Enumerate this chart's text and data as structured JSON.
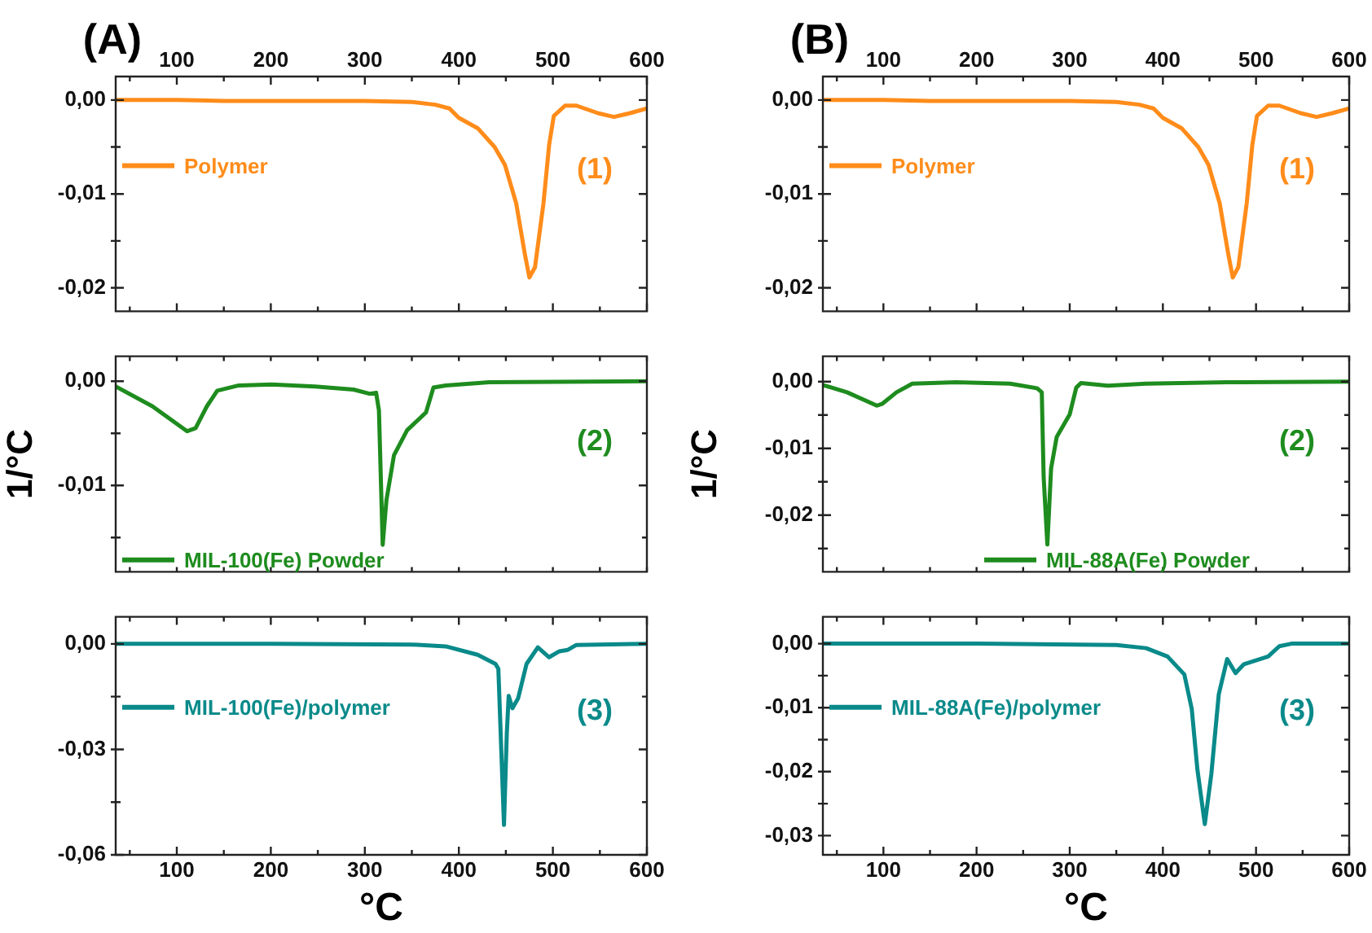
{
  "chart_data": [
    {
      "type": "line",
      "title": "(A)",
      "xlim": [
        35,
        600
      ],
      "xticks": [
        {
          "value": 50,
          "label": null
        },
        100,
        {
          "value": 150,
          "label": null
        },
        200,
        {
          "value": 250,
          "label": null
        },
        300,
        {
          "value": 350,
          "label": null
        },
        400,
        {
          "value": 450,
          "label": null
        },
        500,
        {
          "value": 550,
          "label": null
        },
        600
      ],
      "ylim": [
        -0.0225,
        0.0025
      ],
      "yticks": [
        {
          "value": 0,
          "label": "0,00"
        },
        {
          "value": -0.005,
          "label": null
        },
        {
          "value": -0.01,
          "label": "-0,01"
        },
        {
          "value": -0.015,
          "label": null
        },
        {
          "value": -0.02,
          "label": "-0,02"
        }
      ],
      "legend": "left",
      "annotations": [
        "(1)"
      ],
      "series": [
        {
          "name": "Polymer",
          "color": "#ff8c1a",
          "x": [
            35,
            100,
            150,
            200,
            250,
            300,
            350,
            375,
            390,
            400,
            420,
            438,
            449,
            461,
            470,
            475,
            481,
            490,
            496,
            501,
            513,
            525,
            548,
            565,
            582,
            600
          ],
          "values": [
            0,
            0,
            -0.0001,
            -0.0001,
            -0.0001,
            -0.0001,
            -0.0002,
            -0.0005,
            -0.0009,
            -0.0019,
            -0.003,
            -0.005,
            -0.0069,
            -0.011,
            -0.0163,
            -0.0189,
            -0.0178,
            -0.011,
            -0.0048,
            -0.0017,
            -0.0006,
            -0.0006,
            -0.0014,
            -0.0018,
            -0.0014,
            -0.0009
          ]
        }
      ]
    },
    {
      "type": "line",
      "ylabel": "1/°C",
      "xlim": [
        35,
        600
      ],
      "xticks": [
        {
          "value": 50,
          "label": null
        },
        {
          "value": 100,
          "label": null
        },
        {
          "value": 150,
          "label": null
        },
        {
          "value": 200,
          "label": null
        },
        {
          "value": 250,
          "label": null
        },
        {
          "value": 300,
          "label": null
        },
        {
          "value": 350,
          "label": null
        },
        {
          "value": 400,
          "label": null
        },
        {
          "value": 450,
          "label": null
        },
        {
          "value": 500,
          "label": null
        },
        {
          "value": 550,
          "label": null
        },
        {
          "value": 600,
          "label": null
        }
      ],
      "ylim": [
        -0.0183,
        0.0024
      ],
      "yticks": [
        {
          "value": 0,
          "label": "0,00"
        },
        {
          "value": -0.005,
          "label": null
        },
        {
          "value": -0.01,
          "label": "-0,01"
        },
        {
          "value": -0.015,
          "label": null
        }
      ],
      "tick_labels": "y",
      "legend": "bottom left",
      "annotations": [
        "(2)"
      ],
      "series": [
        {
          "name": "MIL-100(Fe) Powder",
          "color": "#1e8c1e",
          "x": [
            35,
            74,
            111,
            120,
            132,
            143,
            166,
            201,
            247,
            288,
            305,
            312,
            315,
            319,
            323,
            331,
            345,
            365,
            373,
            386,
            432,
            600
          ],
          "values": [
            -0.0005,
            -0.0024,
            -0.0048,
            -0.0045,
            -0.0024,
            -0.0009,
            -0.0004,
            -0.0003,
            -0.0005,
            -0.0008,
            -0.0012,
            -0.0011,
            -0.0028,
            -0.0157,
            -0.0114,
            -0.0071,
            -0.0047,
            -0.003,
            -0.0006,
            -0.0004,
            -0.0001,
            0
          ]
        }
      ]
    },
    {
      "type": "line",
      "xlabel": "°C",
      "xlim": [
        35,
        600
      ],
      "xticks": [
        {
          "value": 50,
          "label": null
        },
        100,
        {
          "value": 150,
          "label": null
        },
        200,
        {
          "value": 250,
          "label": null
        },
        300,
        {
          "value": 350,
          "label": null
        },
        400,
        {
          "value": 450,
          "label": null
        },
        500,
        {
          "value": 550,
          "label": null
        },
        600
      ],
      "ylim": [
        -0.06,
        0.0077
      ],
      "yticks": [
        {
          "value": 0,
          "label": "0,00"
        },
        {
          "value": -0.015,
          "label": null
        },
        {
          "value": -0.03,
          "label": "-0,03"
        },
        {
          "value": -0.045,
          "label": null
        },
        {
          "value": -0.06,
          "label": "-0,06"
        }
      ],
      "legend": "left",
      "annotations": [
        "(3)"
      ],
      "series": [
        {
          "name": "MIL-100(Fe)/polymer",
          "color": "#0a8a8a",
          "x": [
            35,
            200,
            350,
            386,
            420,
            439,
            442,
            448,
            451,
            453,
            457,
            463,
            472,
            484,
            496,
            507,
            516,
            525,
            600
          ],
          "values": [
            0,
            0,
            -0.0002,
            -0.0007,
            -0.0031,
            -0.0057,
            -0.0071,
            -0.0515,
            -0.0254,
            -0.0148,
            -0.0183,
            -0.0155,
            -0.0057,
            -0.001,
            -0.0038,
            -0.0021,
            -0.0017,
            -0.0003,
            0
          ]
        }
      ]
    },
    {
      "type": "line",
      "title": "(B)",
      "xlim": [
        35,
        600
      ],
      "xticks": [
        {
          "value": 50,
          "label": null
        },
        100,
        {
          "value": 150,
          "label": null
        },
        200,
        {
          "value": 250,
          "label": null
        },
        300,
        {
          "value": 350,
          "label": null
        },
        400,
        {
          "value": 450,
          "label": null
        },
        500,
        {
          "value": 550,
          "label": null
        },
        600
      ],
      "ylim": [
        -0.0225,
        0.0025
      ],
      "yticks": [
        {
          "value": 0,
          "label": "0,00"
        },
        {
          "value": -0.005,
          "label": null
        },
        {
          "value": -0.01,
          "label": "-0,01"
        },
        {
          "value": -0.015,
          "label": null
        },
        {
          "value": -0.02,
          "label": "-0,02"
        }
      ],
      "legend": "left",
      "annotations": [
        "(1)"
      ],
      "series": [
        {
          "name": "Polymer",
          "color": "#ff8c1a",
          "x": [
            35,
            100,
            150,
            200,
            250,
            300,
            350,
            375,
            390,
            400,
            420,
            438,
            449,
            461,
            470,
            475,
            481,
            490,
            496,
            501,
            513,
            525,
            548,
            565,
            582,
            600
          ],
          "values": [
            0,
            0,
            -0.0001,
            -0.0001,
            -0.0001,
            -0.0001,
            -0.0002,
            -0.0005,
            -0.0009,
            -0.0019,
            -0.003,
            -0.005,
            -0.0069,
            -0.011,
            -0.0163,
            -0.0189,
            -0.0178,
            -0.011,
            -0.0048,
            -0.0017,
            -0.0006,
            -0.0006,
            -0.0014,
            -0.0018,
            -0.0014,
            -0.0009
          ]
        }
      ]
    },
    {
      "type": "line",
      "ylabel": "1/°C",
      "xlim": [
        35,
        600
      ],
      "xticks": [
        {
          "value": 50,
          "label": null
        },
        {
          "value": 100,
          "label": null
        },
        {
          "value": 150,
          "label": null
        },
        {
          "value": 200,
          "label": null
        },
        {
          "value": 250,
          "label": null
        },
        {
          "value": 300,
          "label": null
        },
        {
          "value": 350,
          "label": null
        },
        {
          "value": 400,
          "label": null
        },
        {
          "value": 450,
          "label": null
        },
        {
          "value": 500,
          "label": null
        },
        {
          "value": 550,
          "label": null
        },
        {
          "value": 600,
          "label": null
        }
      ],
      "ylim": [
        -0.0285,
        0.0038
      ],
      "yticks": [
        {
          "value": 0,
          "label": "0,00"
        },
        {
          "value": -0.005,
          "label": null
        },
        {
          "value": -0.01,
          "label": "-0,01"
        },
        {
          "value": -0.015,
          "label": null
        },
        {
          "value": -0.02,
          "label": "-0,02"
        },
        {
          "value": -0.025,
          "label": null
        }
      ],
      "tick_labels": "y",
      "legend": "bottom",
      "annotations": [
        "(2)"
      ],
      "series": [
        {
          "name": "MIL-88A(Fe) Powder",
          "color": "#1e8c1e",
          "x": [
            35,
            61,
            93,
            99,
            114,
            131,
            178,
            236,
            265,
            270,
            272,
            276,
            280,
            286,
            300,
            307,
            312,
            341,
            382,
            469,
            600
          ],
          "values": [
            -0.0005,
            -0.0016,
            -0.0036,
            -0.0033,
            -0.0016,
            -0.0003,
            -0.0001,
            -0.0003,
            -0.001,
            -0.0016,
            -0.0143,
            -0.0244,
            -0.013,
            -0.0083,
            -0.0049,
            -0.0009,
            -0.0002,
            -0.0006,
            -0.0003,
            -0.0001,
            0
          ]
        }
      ]
    },
    {
      "type": "line",
      "xlabel": "°C",
      "xlim": [
        35,
        600
      ],
      "xticks": [
        {
          "value": 50,
          "label": null
        },
        100,
        {
          "value": 150,
          "label": null
        },
        200,
        {
          "value": 250,
          "label": null
        },
        300,
        {
          "value": 350,
          "label": null
        },
        400,
        {
          "value": 450,
          "label": null
        },
        500,
        {
          "value": 550,
          "label": null
        },
        600
      ],
      "ylim": [
        -0.033,
        0.0042
      ],
      "yticks": [
        {
          "value": 0,
          "label": "0,00"
        },
        {
          "value": -0.005,
          "label": null
        },
        {
          "value": -0.01,
          "label": "-0,01"
        },
        {
          "value": -0.015,
          "label": null
        },
        {
          "value": -0.02,
          "label": "-0,02"
        },
        {
          "value": -0.025,
          "label": null
        },
        {
          "value": -0.03,
          "label": "-0,03"
        }
      ],
      "legend": "left",
      "annotations": [
        "(3)"
      ],
      "series": [
        {
          "name": "MIL-88A(Fe)/polymer",
          "color": "#0a8a8a",
          "x": [
            35,
            200,
            350,
            382,
            405,
            423,
            431,
            437,
            445,
            452,
            460,
            469,
            478,
            487,
            513,
            525,
            538,
            600
          ],
          "values": [
            0,
            0,
            -0.0002,
            -0.0007,
            -0.002,
            -0.0048,
            -0.0102,
            -0.0196,
            -0.0282,
            -0.0204,
            -0.0079,
            -0.0024,
            -0.0046,
            -0.0032,
            -0.002,
            -0.0004,
            0,
            0
          ]
        }
      ]
    }
  ]
}
